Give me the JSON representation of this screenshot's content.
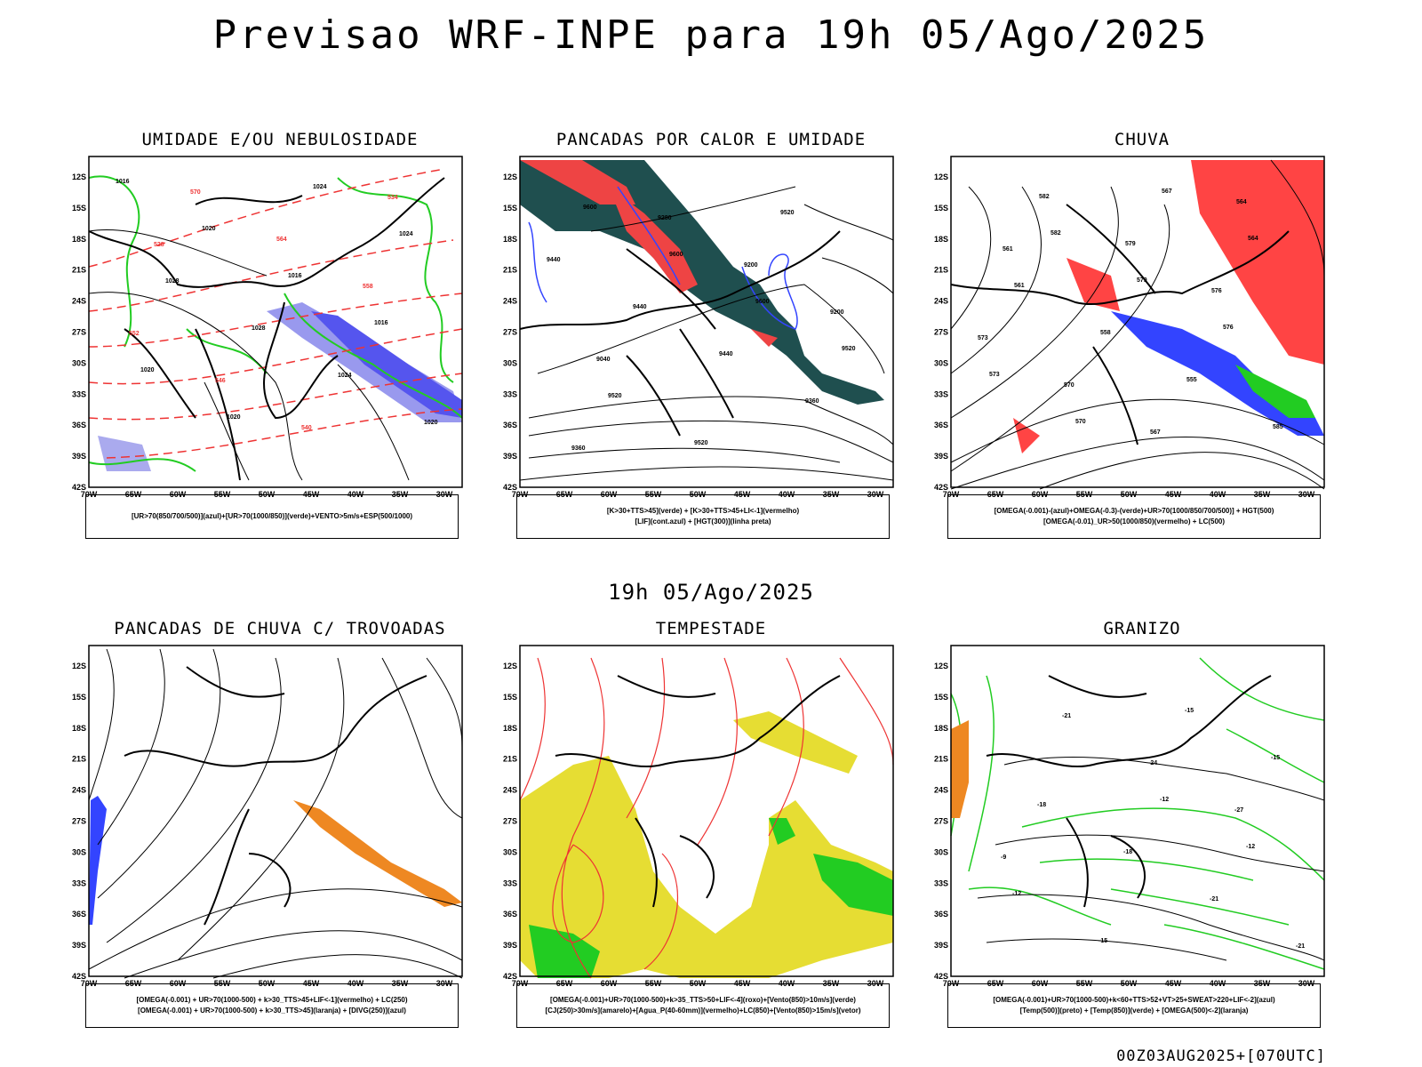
{
  "title": "Previsao WRF-INPE  para 19h 05/Ago/2025",
  "middle_title": "19h 05/Ago/2025",
  "footer": "00Z03AUG2025+[070UTC]",
  "axes": {
    "lat_labels": [
      "12S",
      "15S",
      "18S",
      "21S",
      "24S",
      "27S",
      "30S",
      "33S",
      "36S",
      "39S",
      "42S"
    ],
    "lon_labels": [
      "70W",
      "65W",
      "60W",
      "55W",
      "50W",
      "45W",
      "40W",
      "35W",
      "30W"
    ]
  },
  "colors": {
    "green": "#22cc22",
    "red": "#ff4444",
    "blue": "#3344ff",
    "lavender": "#9999ee",
    "darkteal": "#1f4f4f",
    "yellow": "#e6dd33",
    "orange": "#ee8822",
    "black": "#000000"
  },
  "panels": [
    {
      "id": "umidade",
      "title": "UMIDADE E/OU NEBULOSIDADE",
      "legend": [
        "[UR>70(850/700/500)](azul)+[UR>70(1000/850)](verde)+VENTO>5m/s+ESP(500/1000)"
      ],
      "contour_labels": [
        "1016",
        "1020",
        "1016",
        "1016",
        "1020",
        "1020",
        "1024",
        "1024",
        "1028",
        "1028",
        "1024",
        "1020",
        "570",
        "564",
        "558",
        "552",
        "546",
        "540",
        "534",
        "528"
      ]
    },
    {
      "id": "pancadas_calor",
      "title": "PANCADAS POR CALOR E UMIDADE",
      "legend": [
        "[K>30+TTS>45](verde) + [K>30+TTS>45+LI<-1](vermelho)",
        "[LIF](cont.azul) + [HGT(300)](linha preta)"
      ],
      "contour_labels": [
        "9600",
        "9600",
        "9600",
        "9520",
        "9520",
        "9520",
        "9520",
        "9440",
        "9440",
        "9440",
        "9360",
        "9360",
        "9280",
        "9200",
        "9200",
        "9040"
      ]
    },
    {
      "id": "chuva",
      "title": "CHUVA",
      "legend": [
        "[OMEGA(-0.001)-(azul)+OMEGA(-0.3)-(verde)+UR>70(1000/850/700/500)] + HGT(500)",
        "[OMEGA(-0.01)_UR>50(1000/850)(vermelho) + LC(500)"
      ],
      "contour_labels": [
        "582",
        "579",
        "576",
        "573",
        "570",
        "567",
        "564",
        "561",
        "558",
        "555",
        "585",
        "582",
        "579",
        "576",
        "573",
        "570",
        "567",
        "564",
        "561"
      ]
    },
    {
      "id": "pancadas_trovoadas",
      "title": "PANCADAS DE CHUVA C/ TROVOADAS",
      "legend": [
        "[OMEGA(-0.001) + UR>70(1000-500) + k>30_TTS>45+LIF<-1](vermelho) + LC(250)",
        "[OMEGA(-0.001) + UR>70(1000-500) + k>30_TTS>45](laranja) + [DIVG(250)](azul)"
      ],
      "contour_labels": []
    },
    {
      "id": "tempestade",
      "title": "TEMPESTADE",
      "legend": [
        "[OMEGA(-0.001)+UR>70(1000-500)+k>35_TTS>50+LIF<-4](roxo)+[Vento(850)>10m/s](verde)",
        "[CJ(250)>30m/s](amarelo)+[Agua_P(40-60mm)](vermelho)+LC(850)+[Vento(850)>15m/s](vetor)"
      ],
      "contour_labels": []
    },
    {
      "id": "granizo",
      "title": "GRANIZO",
      "legend": [
        "[OMEGA(-0.001)+UR>70(1000-500)+k<60+TTS>52+VT>25+SWEAT>220+LIF<-2](azul)",
        "[Temp(500)](preto) + [Temp(850)](verde) + [OMEGA(500)<-2](laranja)"
      ],
      "contour_labels": [
        "-12",
        "-12",
        "-12",
        "-15",
        "-15",
        "-15",
        "-18",
        "-18",
        "-21",
        "-21",
        "-21",
        "-24",
        "-27",
        "-9"
      ]
    }
  ]
}
